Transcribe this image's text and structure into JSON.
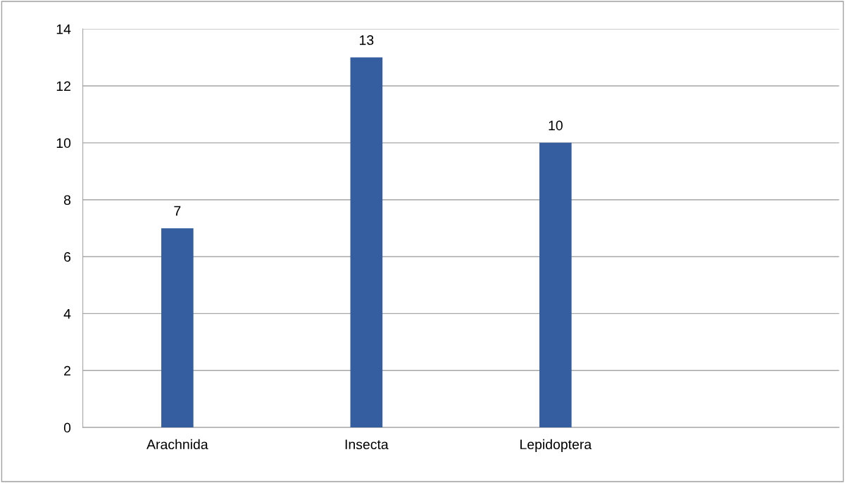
{
  "chart_data": {
    "type": "bar",
    "categories": [
      "Arachnida",
      "Insecta",
      "Lepidoptera",
      null
    ],
    "values": [
      7,
      13,
      10,
      null
    ],
    "color": "#355ea1",
    "ylim": [
      0,
      14
    ],
    "yticks": [
      0,
      2,
      4,
      6,
      8,
      10,
      12,
      14
    ],
    "grid": "y",
    "data_labels": true,
    "legend": false
  }
}
